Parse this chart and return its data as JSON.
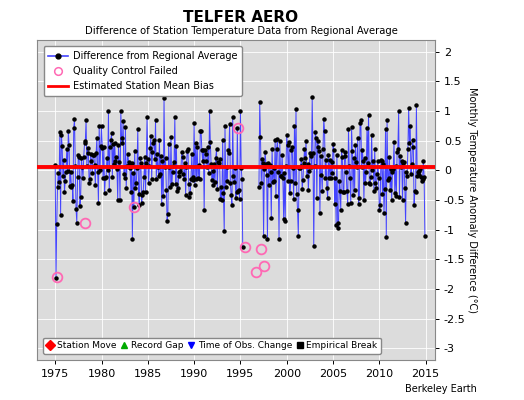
{
  "title": "TELFER AERO",
  "subtitle": "Difference of Station Temperature Data from Regional Average",
  "ylabel": "Monthly Temperature Anomaly Difference (°C)",
  "xlabel_ticks": [
    1975,
    1980,
    1985,
    1990,
    1995,
    2000,
    2005,
    2010,
    2015
  ],
  "yticks": [
    -3,
    -2.5,
    -2,
    -1.5,
    -1,
    -0.5,
    0,
    0.5,
    1,
    1.5,
    2
  ],
  "ylim": [
    -3.2,
    2.2
  ],
  "xlim": [
    1973.0,
    2016.0
  ],
  "mean_bias": 0.05,
  "bias_color": "#FF0000",
  "line_color": "#4444FF",
  "dot_color": "#000000",
  "background_color": "#DCDCDC",
  "grid_color": "#FFFFFF",
  "watermark": "Berkeley Earth",
  "qc_failed_color": "#FF69B4",
  "legend1_entries": [
    {
      "label": "Difference from Regional Average"
    },
    {
      "label": "Quality Control Failed"
    },
    {
      "label": "Estimated Station Mean Bias"
    }
  ],
  "legend2_entries": [
    {
      "label": "Station Move",
      "color": "#FF0000",
      "marker": "D"
    },
    {
      "label": "Record Gap",
      "color": "#00AA00",
      "marker": "^"
    },
    {
      "label": "Time of Obs. Change",
      "color": "#0000FF",
      "marker": "v"
    },
    {
      "label": "Empirical Break",
      "color": "#000000",
      "marker": "s"
    }
  ],
  "seed": 42,
  "qc_times": [
    1975.17,
    1978.25,
    1983.5,
    1994.75,
    1995.5,
    1996.67,
    1997.17,
    1997.58
  ],
  "qc_values": [
    -1.8,
    -0.88,
    -0.62,
    0.72,
    -1.3,
    -1.72,
    -1.32,
    -1.62
  ]
}
